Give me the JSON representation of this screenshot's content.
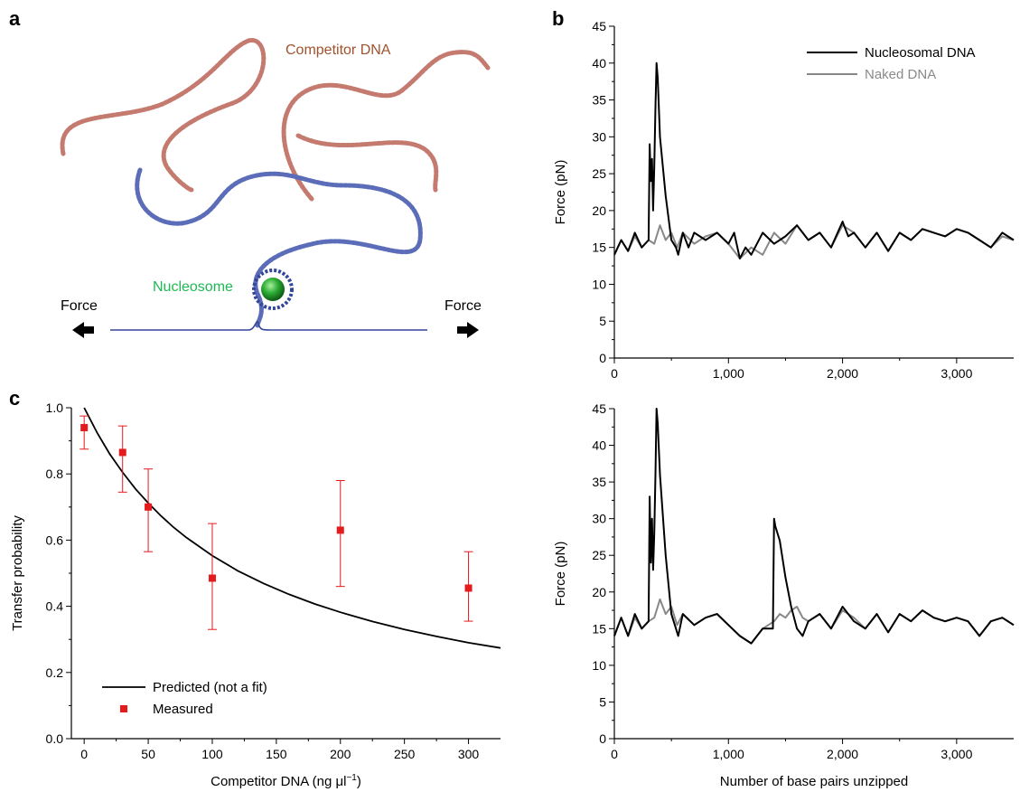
{
  "panel_letters": {
    "a": "a",
    "b": "b",
    "c": "c"
  },
  "schematic": {
    "competitor_label": "Competitor DNA",
    "nucleosome_label": "Nucleosome",
    "force_left": "Force",
    "force_right": "Force",
    "colors": {
      "competitor": "#b85a4e",
      "competitor_label": "#a0522d",
      "dna": "#33479a",
      "nucleosome_label": "#1db954",
      "histone": "#1f9e2e"
    }
  },
  "chart_data": [
    {
      "id": "b-top",
      "type": "line",
      "xlabel": "",
      "ylabel": "Force (pN)",
      "xlim": [
        0,
        3500
      ],
      "ylim": [
        0,
        45
      ],
      "xticks": [
        0,
        1000,
        2000,
        3000
      ],
      "xtick_labels": [
        "0",
        "1,000",
        "2,000",
        "3,000"
      ],
      "yticks": [
        0,
        5,
        10,
        15,
        20,
        25,
        30,
        35,
        40,
        45
      ],
      "ytick_labels": [
        "0",
        "5",
        "10",
        "15",
        "20",
        "25",
        "30",
        "35",
        "40",
        "45"
      ],
      "legend": {
        "position": "top-right",
        "entries": [
          "Nucleosomal DNA",
          "Naked DNA"
        ]
      },
      "series": [
        {
          "name": "Nucleosomal DNA",
          "color": "#000000",
          "x": [
            0,
            60,
            120,
            180,
            240,
            300,
            310,
            320,
            330,
            340,
            350,
            360,
            370,
            380,
            400,
            450,
            500,
            540,
            560,
            600,
            650,
            700,
            800,
            900,
            1000,
            1050,
            1100,
            1150,
            1200,
            1300,
            1400,
            1500,
            1600,
            1700,
            1800,
            1900,
            2000,
            2050,
            2100,
            2200,
            2300,
            2400,
            2500,
            2600,
            2700,
            2800,
            2900,
            3000,
            3100,
            3200,
            3300,
            3400,
            3500
          ],
          "y": [
            14,
            16,
            14.5,
            17,
            15,
            16,
            29,
            24,
            27,
            20,
            26,
            34,
            40,
            38,
            30,
            22,
            16,
            15,
            14,
            17,
            15,
            17,
            16,
            17,
            15.5,
            17,
            13.5,
            15,
            14,
            17,
            15.5,
            16.5,
            18,
            16,
            17,
            15,
            18.5,
            16.5,
            17,
            15,
            17,
            14.5,
            17,
            16,
            17.5,
            17,
            16.5,
            17.5,
            17,
            16,
            15,
            17,
            16
          ]
        },
        {
          "name": "Naked DNA",
          "color": "#888888",
          "x": [
            0,
            60,
            120,
            180,
            240,
            300,
            350,
            400,
            450,
            500,
            550,
            600,
            700,
            800,
            900,
            1000,
            1100,
            1200,
            1300,
            1400,
            1500,
            1600,
            1700,
            1800,
            1900,
            2000,
            2100,
            2200,
            2300,
            2400,
            2500,
            2600,
            2700,
            2800,
            2900,
            3000,
            3100,
            3200,
            3300,
            3400,
            3500
          ],
          "y": [
            14,
            16,
            14.5,
            16.5,
            15,
            16,
            15.5,
            18,
            16,
            17,
            15,
            17,
            15.5,
            16.5,
            17,
            15.5,
            13.5,
            15,
            14,
            17,
            15.5,
            18,
            16,
            17,
            15,
            18,
            17,
            15,
            17,
            14.5,
            17,
            16,
            17.5,
            17,
            16.5,
            17.5,
            17,
            16,
            15,
            16.5,
            16
          ]
        }
      ]
    },
    {
      "id": "b-bottom",
      "type": "line",
      "xlabel": "Number of base pairs unzipped",
      "ylabel": "Force (pN)",
      "xlim": [
        0,
        3500
      ],
      "ylim": [
        0,
        45
      ],
      "xticks": [
        0,
        1000,
        2000,
        3000
      ],
      "xtick_labels": [
        "0",
        "1,000",
        "2,000",
        "3,000"
      ],
      "yticks": [
        0,
        5,
        10,
        15,
        20,
        25,
        30,
        35,
        40,
        45
      ],
      "ytick_labels": [
        "0",
        "5",
        "10",
        "15",
        "20",
        "25",
        "30",
        "35",
        "40",
        "45"
      ],
      "series": [
        {
          "name": "Nucleosomal DNA",
          "color": "#000000",
          "x": [
            0,
            60,
            120,
            180,
            240,
            300,
            310,
            320,
            330,
            340,
            350,
            360,
            370,
            380,
            400,
            450,
            500,
            540,
            560,
            600,
            700,
            800,
            900,
            1000,
            1100,
            1200,
            1300,
            1390,
            1400,
            1410,
            1450,
            1500,
            1550,
            1600,
            1650,
            1700,
            1800,
            1900,
            2000,
            2050,
            2100,
            2200,
            2300,
            2400,
            2500,
            2600,
            2700,
            2800,
            2900,
            3000,
            3100,
            3200,
            3300,
            3400,
            3500
          ],
          "y": [
            14,
            16.5,
            14,
            17,
            15,
            16,
            33,
            24,
            30,
            23,
            28,
            36,
            45,
            43,
            36,
            25,
            17,
            15,
            14,
            17,
            15.5,
            16.5,
            17,
            15.5,
            14,
            13,
            15,
            15,
            30,
            29,
            27,
            22,
            18,
            15,
            14,
            16,
            17,
            15,
            18,
            17,
            16,
            15,
            17,
            14.5,
            17,
            16,
            17.5,
            16.5,
            16,
            16.5,
            16,
            14,
            16,
            16.5,
            15.5
          ]
        },
        {
          "name": "Naked DNA",
          "color": "#888888",
          "x": [
            0,
            60,
            120,
            180,
            240,
            300,
            350,
            400,
            450,
            500,
            550,
            600,
            700,
            800,
            900,
            1000,
            1100,
            1200,
            1300,
            1400,
            1450,
            1500,
            1550,
            1600,
            1650,
            1700,
            1800,
            1900,
            2000,
            2100,
            2200,
            2300,
            2400,
            2500,
            2600,
            2700,
            2800,
            2900,
            3000,
            3100,
            3200,
            3300,
            3400,
            3500
          ],
          "y": [
            14,
            16.5,
            14,
            16.5,
            15,
            16,
            16.5,
            19,
            17,
            18,
            15.5,
            17,
            15.5,
            16.5,
            17,
            15.5,
            14,
            13,
            15,
            16,
            17,
            16.5,
            17.5,
            18,
            16.5,
            16,
            17,
            15,
            17.5,
            16.5,
            15,
            17,
            14.5,
            17,
            16,
            17.5,
            16.5,
            16,
            16.5,
            16,
            14,
            16,
            16.5,
            15.5
          ]
        }
      ]
    },
    {
      "id": "c",
      "type": "scatter",
      "xlabel": "Competitor DNA (ng μl",
      "xlabel_sup": "−1",
      "xlabel_close": ")",
      "ylabel": "Transfer probability",
      "xlim": [
        -10,
        325
      ],
      "ylim": [
        0,
        1.0
      ],
      "xticks": [
        0,
        50,
        100,
        150,
        200,
        250,
        300
      ],
      "xtick_labels": [
        "0",
        "50",
        "100",
        "150",
        "200",
        "250",
        "300"
      ],
      "yticks": [
        0,
        0.2,
        0.4,
        0.6,
        0.8,
        1.0
      ],
      "ytick_labels": [
        "0.0",
        "0.2",
        "0.4",
        "0.6",
        "0.8",
        "1.0"
      ],
      "legend": {
        "position": "bottom-left",
        "entries": [
          "Predicted (not a fit)",
          "Measured"
        ]
      },
      "measured": {
        "name": "Measured",
        "color": "#e41a1c",
        "x": [
          0,
          30,
          50,
          100,
          200,
          300
        ],
        "y": [
          0.94,
          0.865,
          0.7,
          0.485,
          0.63,
          0.455
        ],
        "err_low": [
          0.875,
          0.745,
          0.565,
          0.33,
          0.46,
          0.355
        ],
        "err_high": [
          0.975,
          0.945,
          0.815,
          0.65,
          0.78,
          0.565
        ]
      },
      "predicted": {
        "name": "Predicted (not a fit)",
        "color": "#000000",
        "x": [
          0,
          10,
          20,
          30,
          40,
          50,
          60,
          70,
          80,
          100,
          120,
          140,
          160,
          180,
          200,
          225,
          250,
          275,
          300,
          325
        ],
        "y": [
          1.0,
          0.925,
          0.86,
          0.805,
          0.755,
          0.712,
          0.673,
          0.638,
          0.607,
          0.553,
          0.507,
          0.469,
          0.436,
          0.407,
          0.382,
          0.354,
          0.33,
          0.309,
          0.29,
          0.274
        ]
      }
    }
  ]
}
